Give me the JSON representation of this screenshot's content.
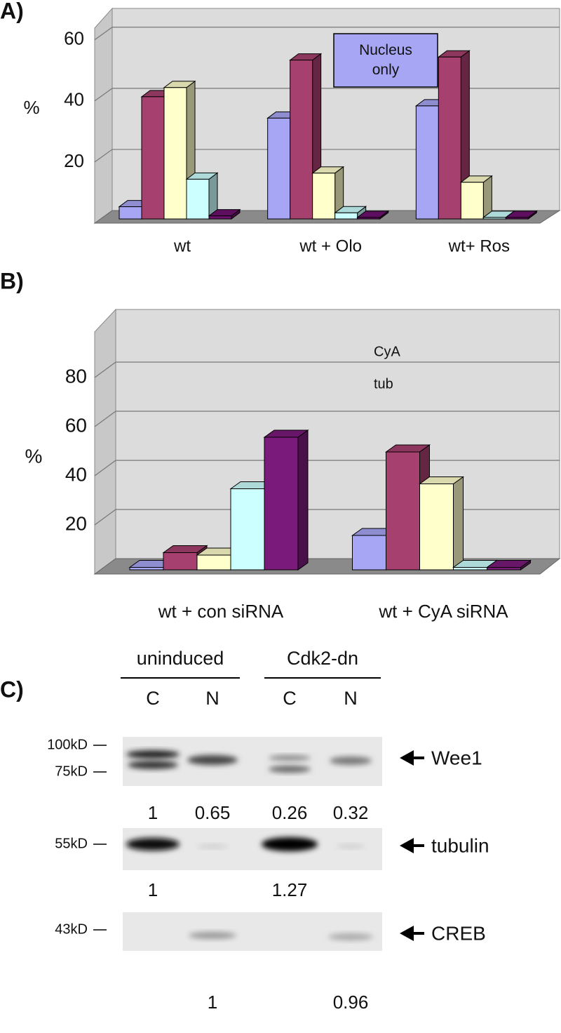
{
  "chart_data": [
    {
      "type": "bar3d",
      "label": "A)",
      "ylabel": "%",
      "annotation": "Nucleus only",
      "categories": [
        "wt",
        "wt + Olo",
        "wt+ Ros"
      ],
      "series": [
        {
          "color": "#a6a6f5",
          "values": [
            4,
            33,
            37
          ]
        },
        {
          "color": "#a6406e",
          "values": [
            40,
            52,
            53
          ]
        },
        {
          "color": "#ffffcc",
          "values": [
            43,
            15,
            12
          ]
        },
        {
          "color": "#ccffff",
          "values": [
            13,
            2,
            0.5
          ]
        },
        {
          "color": "#6e106e",
          "values": [
            1,
            0.5,
            0.5
          ]
        }
      ],
      "ylim": [
        0,
        65
      ],
      "yticks": [
        20,
        40,
        60
      ],
      "grid": true
    },
    {
      "type": "bar3d",
      "label": "B)",
      "ylabel": "%",
      "inset_labels": [
        "CyA",
        "tub"
      ],
      "categories": [
        "wt + con siRNA",
        "wt + CyA siRNA"
      ],
      "series": [
        {
          "color": "#a6a6f5",
          "values": [
            1,
            14
          ]
        },
        {
          "color": "#a6406e",
          "values": [
            7,
            48
          ]
        },
        {
          "color": "#ffffcc",
          "values": [
            6,
            35
          ]
        },
        {
          "color": "#ccffff",
          "values": [
            33,
            1
          ]
        },
        {
          "color": "#7a1a7a",
          "values": [
            54,
            1
          ]
        }
      ],
      "ylim": [
        0,
        100
      ],
      "yticks": [
        20,
        40,
        60,
        80
      ],
      "grid": true
    }
  ],
  "blot": {
    "label": "C)",
    "groups": [
      "uninduced",
      "Cdk2-dn"
    ],
    "lanes": [
      "C",
      "N",
      "C",
      "N"
    ],
    "panels": [
      {
        "markers": [
          "100kD",
          "75kD"
        ],
        "protein": "Wee1",
        "quant": [
          1,
          0.65,
          0.26,
          0.32
        ]
      },
      {
        "markers": [
          "55kD"
        ],
        "protein": "tubulin",
        "quant": [
          1,
          null,
          1.27,
          null
        ]
      },
      {
        "markers": [
          "43kD"
        ],
        "protein": "CREB",
        "quant": [
          null,
          1,
          null,
          0.96
        ]
      }
    ]
  }
}
